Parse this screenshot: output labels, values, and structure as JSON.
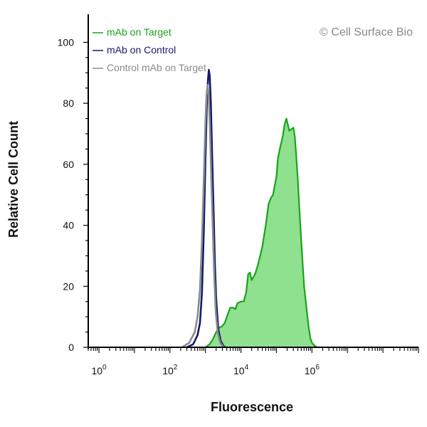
{
  "watermark": "© Cell Surface Bio",
  "chart_data": {
    "type": "area",
    "title": "",
    "xlabel": "Fluorescence",
    "ylabel": "Relative Cell Count",
    "xscale": "log",
    "xlim": [
      0.5,
      1000000000
    ],
    "ylim": [
      0,
      105
    ],
    "x_ticks": [
      {
        "base": "10",
        "exp": "0",
        "value": 1
      },
      {
        "base": "10",
        "exp": "2",
        "value": 100
      },
      {
        "base": "10",
        "exp": "4",
        "value": 10000
      },
      {
        "base": "10",
        "exp": "6",
        "value": 1000000
      }
    ],
    "y_ticks": [
      "0",
      "20",
      "40",
      "60",
      "80",
      "100"
    ],
    "y_tick_values": [
      0,
      20,
      40,
      60,
      80,
      100
    ],
    "grid": false,
    "legend_position": "top-left",
    "series": [
      {
        "name": "mAb on Target",
        "color": "#1aa31a",
        "fill": "#8fe08f",
        "filled": true,
        "points": [
          [
            1000,
            0
          ],
          [
            1300,
            1
          ],
          [
            1600,
            2.5
          ],
          [
            2000,
            5
          ],
          [
            2500,
            6.5
          ],
          [
            3000,
            7
          ],
          [
            3500,
            8
          ],
          [
            4000,
            10
          ],
          [
            5000,
            13
          ],
          [
            6000,
            13
          ],
          [
            7000,
            12.5
          ],
          [
            8000,
            14.5
          ],
          [
            10000,
            15
          ],
          [
            12000,
            15
          ],
          [
            14000,
            18
          ],
          [
            16000,
            24
          ],
          [
            18000,
            24.5
          ],
          [
            20000,
            22
          ],
          [
            25000,
            24
          ],
          [
            30000,
            27
          ],
          [
            40000,
            33
          ],
          [
            50000,
            40
          ],
          [
            60000,
            47
          ],
          [
            70000,
            49
          ],
          [
            80000,
            50
          ],
          [
            100000,
            56
          ],
          [
            110000,
            62
          ],
          [
            130000,
            66
          ],
          [
            150000,
            69
          ],
          [
            170000,
            73
          ],
          [
            190000,
            75
          ],
          [
            210000,
            73
          ],
          [
            230000,
            71
          ],
          [
            260000,
            71.5
          ],
          [
            300000,
            72
          ],
          [
            330000,
            69
          ],
          [
            360000,
            63
          ],
          [
            400000,
            55
          ],
          [
            450000,
            44
          ],
          [
            500000,
            35
          ],
          [
            550000,
            27
          ],
          [
            600000,
            20
          ],
          [
            700000,
            13
          ],
          [
            800000,
            7
          ],
          [
            900000,
            3
          ],
          [
            1000000,
            1.5
          ],
          [
            1200000,
            0.5
          ],
          [
            1400000,
            0
          ]
        ]
      },
      {
        "name": "mAb on Control",
        "color": "#141a6e",
        "filled": false,
        "points": [
          [
            300,
            0
          ],
          [
            450,
            1
          ],
          [
            600,
            4
          ],
          [
            700,
            8
          ],
          [
            800,
            18
          ],
          [
            900,
            38
          ],
          [
            1000,
            62
          ],
          [
            1100,
            80
          ],
          [
            1180,
            88
          ],
          [
            1250,
            91
          ],
          [
            1320,
            89
          ],
          [
            1420,
            80
          ],
          [
            1550,
            62
          ],
          [
            1700,
            44
          ],
          [
            1850,
            27
          ],
          [
            2000,
            16
          ],
          [
            2300,
            6
          ],
          [
            2700,
            2
          ],
          [
            3200,
            0.5
          ],
          [
            3600,
            0
          ]
        ]
      },
      {
        "name": "Control mAb on Target",
        "color": "#8a8a8a",
        "filled": false,
        "points": [
          [
            220,
            0
          ],
          [
            350,
            1.5
          ],
          [
            500,
            5
          ],
          [
            600,
            10
          ],
          [
            700,
            19
          ],
          [
            800,
            35
          ],
          [
            900,
            55
          ],
          [
            1000,
            74
          ],
          [
            1080,
            83
          ],
          [
            1150,
            86
          ],
          [
            1230,
            83
          ],
          [
            1330,
            73
          ],
          [
            1450,
            57
          ],
          [
            1600,
            40
          ],
          [
            1750,
            25
          ],
          [
            1950,
            12
          ],
          [
            2200,
            5
          ],
          [
            2600,
            1.5
          ],
          [
            3000,
            0.5
          ],
          [
            3400,
            0
          ]
        ]
      }
    ]
  }
}
